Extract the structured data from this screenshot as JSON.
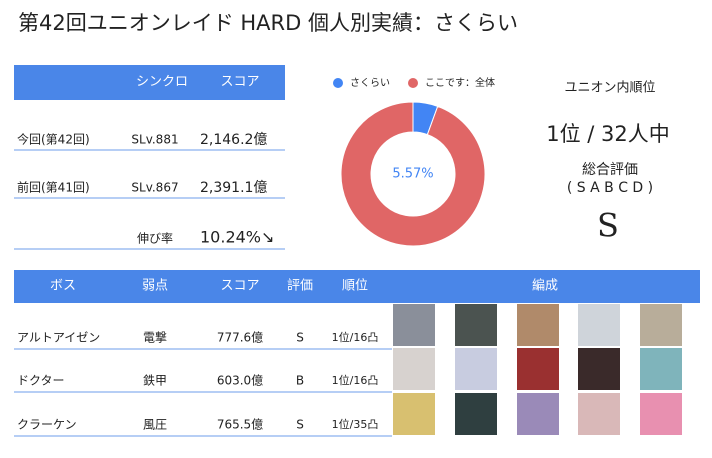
{
  "title": "第42回ユニオンレイド HARD 個人別実績：さくらい",
  "summary_table": {
    "header": [
      "シンクロ",
      "スコア"
    ],
    "rows": [
      [
        "今回(第42回)",
        "SLv.881",
        "2,146.2億"
      ],
      [
        "前回(第41回)",
        "SLv.867",
        "2,391.1億"
      ]
    ],
    "growth_label": "伸び率",
    "growth_value": "10.24%↘"
  },
  "chart_data": {
    "type": "pie",
    "donut": true,
    "series": [
      {
        "name": "さくらい",
        "color": "#4285f4"
      },
      {
        "name": "ここです：全体",
        "color": "#e06666"
      }
    ],
    "values": [
      5.57,
      94.43
    ],
    "value_labels": [
      "5.57%",
      null
    ]
  },
  "ranking": {
    "label": "ユニオン内順位",
    "rank": "1位 / 32人中",
    "eval_label": "総合評価",
    "eval_scale": "( S A B C D )",
    "eval": "S"
  },
  "boss_table": {
    "header": [
      "ボス",
      "弱点",
      "スコア",
      "評価",
      "順位",
      "編成"
    ],
    "rows": [
      [
        "アルトアイゼン",
        "電撃",
        "777.6億",
        "S",
        "1位/16凸"
      ],
      [
        "ドクター",
        "鉄甲",
        "603.0億",
        "B",
        "1位/16凸"
      ],
      [
        "クラーケン",
        "風圧",
        "765.5億",
        "S",
        "1位/35凸"
      ]
    ]
  }
}
